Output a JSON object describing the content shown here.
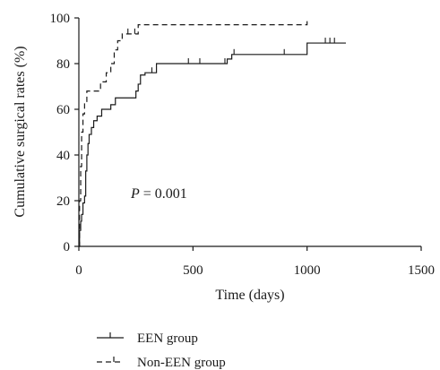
{
  "chart_data": {
    "type": "line",
    "subtype": "kaplan-meier-step",
    "xlabel": "Time (days)",
    "ylabel": "Cumulative surgical rates (%)",
    "xlim": [
      0,
      1500
    ],
    "ylim": [
      0,
      100
    ],
    "x_ticks": [
      0,
      500,
      1000,
      1500
    ],
    "y_ticks": [
      0,
      20,
      40,
      60,
      80,
      100
    ],
    "grid": false,
    "legend_position": "bottom-left",
    "annotation": {
      "italic": "P",
      "rest": " = 0.001"
    },
    "series": [
      {
        "name": "EEN group",
        "line_style": "solid",
        "color": "#1a1a1a",
        "steps": [
          [
            0,
            0
          ],
          [
            3,
            7
          ],
          [
            8,
            11
          ],
          [
            12,
            14
          ],
          [
            18,
            19
          ],
          [
            25,
            22
          ],
          [
            30,
            33
          ],
          [
            35,
            40
          ],
          [
            40,
            45
          ],
          [
            45,
            49
          ],
          [
            55,
            52
          ],
          [
            65,
            55
          ],
          [
            80,
            57
          ],
          [
            100,
            60
          ],
          [
            140,
            62
          ],
          [
            160,
            65
          ],
          [
            250,
            68
          ],
          [
            260,
            71
          ],
          [
            270,
            75
          ],
          [
            290,
            76
          ],
          [
            340,
            80
          ],
          [
            650,
            82
          ],
          [
            670,
            84
          ],
          [
            1000,
            89
          ],
          [
            1170,
            89
          ]
        ],
        "censor_x": [
          320,
          480,
          530,
          640,
          680,
          900,
          1080,
          1100,
          1120
        ]
      },
      {
        "name": "Non-EEN group",
        "line_style": "dashed",
        "color": "#1a1a1a",
        "steps": [
          [
            0,
            0
          ],
          [
            3,
            20
          ],
          [
            8,
            35
          ],
          [
            12,
            50
          ],
          [
            18,
            58
          ],
          [
            25,
            63
          ],
          [
            35,
            68
          ],
          [
            95,
            72
          ],
          [
            120,
            76
          ],
          [
            140,
            80
          ],
          [
            155,
            86
          ],
          [
            170,
            90
          ],
          [
            190,
            93
          ],
          [
            260,
            97
          ],
          [
            990,
            97
          ],
          [
            1000,
            100
          ]
        ],
        "censor_x": [
          215,
          245
        ]
      }
    ]
  }
}
